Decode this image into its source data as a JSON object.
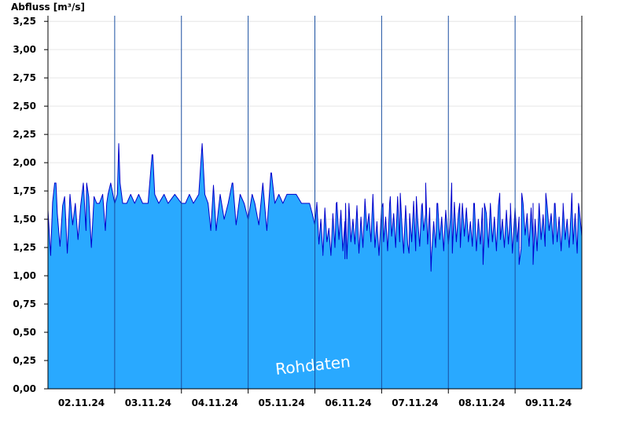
{
  "chart_data": {
    "type": "area",
    "ylabel": "Abfluss [m³/s]",
    "ylim": [
      0,
      3.3
    ],
    "ytick_values": [
      0,
      0.25,
      0.5,
      0.75,
      1.0,
      1.25,
      1.5,
      1.75,
      2.0,
      2.25,
      2.5,
      2.75,
      3.0,
      3.25
    ],
    "ytick_labels": [
      "0,00",
      "0,25",
      "0,50",
      "0,75",
      "1,00",
      "1,25",
      "1,50",
      "1,75",
      "2,00",
      "2,25",
      "2,50",
      "2,75",
      "3,00",
      "3,25"
    ],
    "xlim": [
      0,
      8
    ],
    "x_day_boundaries": [
      1,
      2,
      3,
      4,
      5,
      6,
      7
    ],
    "xtick_positions": [
      0.5,
      1.5,
      2.5,
      3.5,
      4.5,
      5.5,
      6.5,
      7.5
    ],
    "xtick_labels": [
      "02.11.24",
      "03.11.24",
      "04.11.24",
      "05.11.24",
      "06.11.24",
      "07.11.24",
      "08.11.24",
      "09.11.24"
    ],
    "watermark": "Rohdaten",
    "colors": {
      "fill": "#29a9ff",
      "line": "#0000cc",
      "grid": "#e6e6e6",
      "day_line": "#1a4fa0"
    },
    "series": [
      {
        "values": [
          [
            0.0,
            1.58
          ],
          [
            0.04,
            1.18
          ],
          [
            0.07,
            1.65
          ],
          [
            0.1,
            1.82
          ],
          [
            0.14,
            1.55
          ],
          [
            0.18,
            1.26
          ],
          [
            0.22,
            1.62
          ],
          [
            0.25,
            1.7
          ],
          [
            0.29,
            1.2
          ],
          [
            0.33,
            1.72
          ],
          [
            0.37,
            1.45
          ],
          [
            0.41,
            1.64
          ],
          [
            0.45,
            1.32
          ],
          [
            0.49,
            1.62
          ],
          [
            0.53,
            1.82
          ],
          [
            0.57,
            1.4
          ],
          [
            0.61,
            1.7
          ],
          [
            0.65,
            1.25
          ],
          [
            0.69,
            1.7
          ],
          [
            0.73,
            1.64
          ],
          [
            0.77,
            1.64
          ],
          [
            0.82,
            1.72
          ],
          [
            0.86,
            1.4
          ],
          [
            0.88,
            1.64
          ],
          [
            0.9,
            1.72
          ],
          [
            0.94,
            1.82
          ],
          [
            1.0,
            1.64
          ],
          [
            1.04,
            1.72
          ],
          [
            1.06,
            2.17
          ],
          [
            1.08,
            1.82
          ],
          [
            1.12,
            1.64
          ],
          [
            1.18,
            1.64
          ],
          [
            1.24,
            1.72
          ],
          [
            1.3,
            1.64
          ],
          [
            1.36,
            1.72
          ],
          [
            1.42,
            1.64
          ],
          [
            1.5,
            1.64
          ],
          [
            1.56,
            2.07
          ],
          [
            1.6,
            1.72
          ],
          [
            1.66,
            1.64
          ],
          [
            1.74,
            1.72
          ],
          [
            1.8,
            1.64
          ],
          [
            1.9,
            1.72
          ],
          [
            2.0,
            1.64
          ],
          [
            2.06,
            1.64
          ],
          [
            2.12,
            1.72
          ],
          [
            2.18,
            1.64
          ],
          [
            2.26,
            1.72
          ],
          [
            2.31,
            2.17
          ],
          [
            2.35,
            1.72
          ],
          [
            2.4,
            1.64
          ],
          [
            2.44,
            1.4
          ],
          [
            2.48,
            1.8
          ],
          [
            2.52,
            1.4
          ],
          [
            2.58,
            1.72
          ],
          [
            2.64,
            1.5
          ],
          [
            2.7,
            1.64
          ],
          [
            2.76,
            1.82
          ],
          [
            2.82,
            1.45
          ],
          [
            2.88,
            1.72
          ],
          [
            2.94,
            1.64
          ],
          [
            3.0,
            1.5
          ],
          [
            3.06,
            1.72
          ],
          [
            3.1,
            1.64
          ],
          [
            3.16,
            1.45
          ],
          [
            3.22,
            1.82
          ],
          [
            3.28,
            1.4
          ],
          [
            3.34,
            1.91
          ],
          [
            3.4,
            1.64
          ],
          [
            3.46,
            1.72
          ],
          [
            3.52,
            1.64
          ],
          [
            3.58,
            1.72
          ],
          [
            3.64,
            1.72
          ],
          [
            3.72,
            1.72
          ],
          [
            3.8,
            1.64
          ],
          [
            3.86,
            1.64
          ],
          [
            3.92,
            1.64
          ],
          [
            3.96,
            1.55
          ],
          [
            4.0,
            1.45
          ],
          [
            4.03,
            1.65
          ],
          [
            4.06,
            1.28
          ],
          [
            4.09,
            1.5
          ],
          [
            4.12,
            1.2
          ],
          [
            4.15,
            1.6
          ],
          [
            4.18,
            1.3
          ],
          [
            4.21,
            1.42
          ],
          [
            4.24,
            1.18
          ],
          [
            4.27,
            1.55
          ],
          [
            4.3,
            1.25
          ],
          [
            4.33,
            1.65
          ],
          [
            4.36,
            1.32
          ],
          [
            4.39,
            1.58
          ],
          [
            4.42,
            1.22
          ],
          [
            4.45,
            1.48
          ],
          [
            4.48,
            1.15
          ],
          [
            4.51,
            1.64
          ],
          [
            4.54,
            1.3
          ],
          [
            4.57,
            1.5
          ],
          [
            4.6,
            1.28
          ],
          [
            4.63,
            1.62
          ],
          [
            4.66,
            1.2
          ],
          [
            4.69,
            1.52
          ],
          [
            4.72,
            1.25
          ],
          [
            4.75,
            1.68
          ],
          [
            4.78,
            1.4
          ],
          [
            4.81,
            1.55
          ],
          [
            4.84,
            1.3
          ],
          [
            4.87,
            1.72
          ],
          [
            4.9,
            1.25
          ],
          [
            4.93,
            1.48
          ],
          [
            4.96,
            1.18
          ],
          [
            5.0,
            1.6
          ],
          [
            5.03,
            1.3
          ],
          [
            5.06,
            1.52
          ],
          [
            5.09,
            1.22
          ],
          [
            5.12,
            1.64
          ],
          [
            5.15,
            1.35
          ],
          [
            5.18,
            1.55
          ],
          [
            5.21,
            1.25
          ],
          [
            5.24,
            1.7
          ],
          [
            5.27,
            1.3
          ],
          [
            5.3,
            1.5
          ],
          [
            5.33,
            1.2
          ],
          [
            5.36,
            1.62
          ],
          [
            5.39,
            1.28
          ],
          [
            5.42,
            1.55
          ],
          [
            5.45,
            1.3
          ],
          [
            5.48,
            1.66
          ],
          [
            5.51,
            1.22
          ],
          [
            5.54,
            1.5
          ],
          [
            5.57,
            1.26
          ],
          [
            5.6,
            1.62
          ],
          [
            5.63,
            1.4
          ],
          [
            5.66,
            1.55
          ],
          [
            5.69,
            1.28
          ],
          [
            5.72,
            1.6
          ],
          [
            5.75,
            1.2
          ],
          [
            5.78,
            1.48
          ],
          [
            5.81,
            1.25
          ],
          [
            5.84,
            1.64
          ],
          [
            5.87,
            1.32
          ],
          [
            5.9,
            1.52
          ],
          [
            5.93,
            1.22
          ],
          [
            5.96,
            1.58
          ],
          [
            6.0,
            1.28
          ],
          [
            6.03,
            1.5
          ],
          [
            6.06,
            1.2
          ],
          [
            6.09,
            1.65
          ],
          [
            6.12,
            1.3
          ],
          [
            6.15,
            1.55
          ],
          [
            6.18,
            1.25
          ],
          [
            6.21,
            1.64
          ],
          [
            6.24,
            1.35
          ],
          [
            6.27,
            1.6
          ],
          [
            6.3,
            1.3
          ],
          [
            6.33,
            1.48
          ],
          [
            6.36,
            1.26
          ],
          [
            6.39,
            1.64
          ],
          [
            6.42,
            1.22
          ],
          [
            6.45,
            1.5
          ],
          [
            6.48,
            1.28
          ],
          [
            6.51,
            1.6
          ],
          [
            6.54,
            1.4
          ],
          [
            6.57,
            1.55
          ],
          [
            6.6,
            1.25
          ],
          [
            6.63,
            1.64
          ],
          [
            6.66,
            1.3
          ],
          [
            6.69,
            1.52
          ],
          [
            6.72,
            1.22
          ],
          [
            6.75,
            1.62
          ],
          [
            6.78,
            1.32
          ],
          [
            6.81,
            1.5
          ],
          [
            6.84,
            1.25
          ],
          [
            6.87,
            1.58
          ],
          [
            6.9,
            1.28
          ],
          [
            6.93,
            1.55
          ],
          [
            6.96,
            1.2
          ],
          [
            7.0,
            1.6
          ],
          [
            7.03,
            1.3
          ],
          [
            7.06,
            1.52
          ],
          [
            7.09,
            1.24
          ],
          [
            7.12,
            1.64
          ],
          [
            7.15,
            1.36
          ],
          [
            7.18,
            1.55
          ],
          [
            7.21,
            1.26
          ],
          [
            7.24,
            1.6
          ],
          [
            7.27,
            1.3
          ],
          [
            7.3,
            1.5
          ],
          [
            7.33,
            1.22
          ],
          [
            7.36,
            1.64
          ],
          [
            7.39,
            1.32
          ],
          [
            7.42,
            1.54
          ],
          [
            7.45,
            1.26
          ],
          [
            7.48,
            1.62
          ],
          [
            7.51,
            1.4
          ],
          [
            7.54,
            1.55
          ],
          [
            7.57,
            1.28
          ],
          [
            7.6,
            1.64
          ],
          [
            7.63,
            1.3
          ],
          [
            7.66,
            1.52
          ],
          [
            7.69,
            1.22
          ],
          [
            7.72,
            1.6
          ],
          [
            7.75,
            1.32
          ],
          [
            7.78,
            1.5
          ],
          [
            7.81,
            1.25
          ],
          [
            7.84,
            1.58
          ],
          [
            7.87,
            1.28
          ],
          [
            7.9,
            1.55
          ],
          [
            7.93,
            1.2
          ],
          [
            7.96,
            1.6
          ],
          [
            8.0,
            1.35
          ]
        ]
      }
    ],
    "peaks": [
      [
        0.12,
        1.82
      ],
      [
        0.58,
        1.82
      ],
      [
        1.06,
        2.17
      ],
      [
        1.57,
        2.07
      ],
      [
        2.31,
        2.17
      ],
      [
        2.77,
        1.82
      ],
      [
        3.35,
        1.91
      ],
      [
        4.32,
        1.64
      ],
      [
        4.46,
        1.64
      ],
      [
        5.02,
        1.64
      ],
      [
        5.13,
        1.7
      ],
      [
        5.28,
        1.73
      ],
      [
        5.52,
        1.7
      ],
      [
        5.61,
        1.64
      ],
      [
        5.66,
        1.82
      ],
      [
        5.83,
        1.64
      ],
      [
        6.05,
        1.82
      ],
      [
        6.17,
        1.64
      ],
      [
        6.38,
        1.64
      ],
      [
        6.54,
        1.64
      ],
      [
        6.77,
        1.73
      ],
      [
        6.93,
        1.64
      ],
      [
        7.1,
        1.73
      ],
      [
        7.27,
        1.64
      ],
      [
        7.46,
        1.73
      ],
      [
        7.59,
        1.64
      ],
      [
        7.72,
        1.64
      ],
      [
        7.85,
        1.73
      ],
      [
        7.95,
        1.64
      ],
      [
        4.12,
        1.18
      ],
      [
        4.45,
        1.15
      ],
      [
        5.41,
        1.2
      ],
      [
        5.74,
        1.04
      ],
      [
        6.52,
        1.1
      ],
      [
        7.06,
        1.1
      ],
      [
        7.27,
        1.1
      ]
    ]
  }
}
